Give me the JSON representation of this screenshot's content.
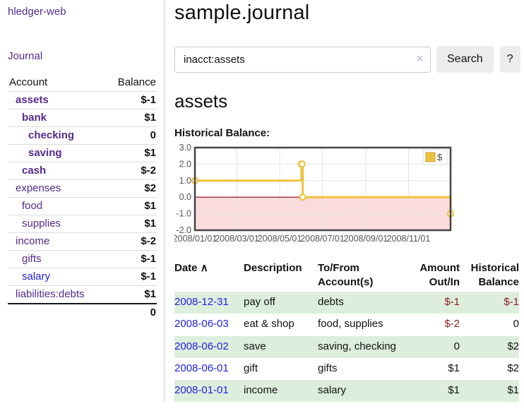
{
  "app": {
    "title": "hledger-web",
    "nav_journal": "Journal"
  },
  "sidebar": {
    "accounts_header": {
      "account": "Account",
      "balance": "Balance"
    },
    "accounts": [
      {
        "name": "assets",
        "depth": 0,
        "balance": "$-1",
        "bold": true
      },
      {
        "name": "bank",
        "depth": 1,
        "balance": "$1",
        "bold": true
      },
      {
        "name": "checking",
        "depth": 2,
        "balance": "0",
        "bold": true
      },
      {
        "name": "saving",
        "depth": 2,
        "balance": "$1",
        "bold": true
      },
      {
        "name": "cash",
        "depth": 1,
        "balance": "$-2",
        "bold": true
      },
      {
        "name": "expenses",
        "depth": 0,
        "balance": "$2"
      },
      {
        "name": "food",
        "depth": 1,
        "balance": "$1"
      },
      {
        "name": "supplies",
        "depth": 1,
        "balance": "$1"
      },
      {
        "name": "income",
        "depth": 0,
        "balance": "$-2"
      },
      {
        "name": "gifts",
        "depth": 1,
        "balance": "$-1"
      },
      {
        "name": "salary",
        "depth": 1,
        "balance": "$-1",
        "unvisited": true
      },
      {
        "name": "liabilities:debts",
        "depth": 0,
        "balance": "$1"
      }
    ],
    "total": "0"
  },
  "header": {
    "title": "sample.journal"
  },
  "search": {
    "query": "inacct:assets",
    "clear_icon": "×",
    "button_label": "Search",
    "help_label": "?"
  },
  "register": {
    "heading": "assets",
    "chart_title": "Historical Balance:",
    "sort_icon": "∧",
    "columns": [
      {
        "label": "Date"
      },
      {
        "label": "Description"
      },
      {
        "label": "To/From Account(s)"
      },
      {
        "label": "Amount Out/In"
      },
      {
        "label": "Historical Balance"
      }
    ],
    "rows": [
      {
        "date": "2008-12-31",
        "description": "pay off",
        "accounts": "debts",
        "amount": "$-1",
        "balance": "$-1"
      },
      {
        "date": "2008-06-03",
        "description": "eat & shop",
        "accounts": "food, supplies",
        "amount": "$-2",
        "balance": "0"
      },
      {
        "date": "2008-06-02",
        "description": "save",
        "accounts": "saving, checking",
        "amount": "0",
        "balance": "$2"
      },
      {
        "date": "2008-06-01",
        "description": "gift",
        "accounts": "gifts",
        "amount": "$1",
        "balance": "$2"
      },
      {
        "date": "2008-01-01",
        "description": "income",
        "accounts": "salary",
        "amount": "$1",
        "balance": "$1"
      }
    ]
  },
  "chart_data": {
    "type": "line",
    "step": true,
    "title": "Historical Balance:",
    "series": [
      {
        "name": "$",
        "color": "#edc240",
        "points": [
          [
            "2008-01-01",
            1
          ],
          [
            "2008-06-01",
            2
          ],
          [
            "2008-06-02",
            2
          ],
          [
            "2008-06-03",
            0
          ],
          [
            "2008-12-31",
            -1
          ]
        ]
      }
    ],
    "x_range": [
      "2008-01-01",
      "2008-12-31"
    ],
    "xticks": [
      "2008/01/01",
      "2008/03/01",
      "2008/05/01",
      "2008/07/01",
      "2008/09/01",
      "2008/11/01"
    ],
    "yticks": [
      "3.0",
      "2.0",
      "1.0",
      "0.0",
      "-1.0",
      "-2.0"
    ],
    "ylim": [
      -2,
      3
    ],
    "grid": true,
    "legend": "$",
    "legend_position": "top-right",
    "negative_region_color": "#fbdcdc",
    "zero_line_color": "#8b0000",
    "border_color": "#444444",
    "grid_color": "#e4e4e4",
    "tick_color": "#545454"
  }
}
